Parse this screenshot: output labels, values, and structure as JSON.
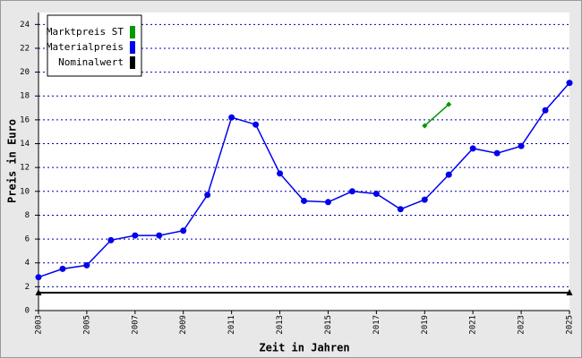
{
  "chart_data": {
    "type": "line",
    "x_label": "Zeit in Jahren",
    "y_label": "Preis in Euro",
    "xlim": [
      2003,
      2025
    ],
    "xticks": [
      2003,
      2005,
      2007,
      2009,
      2011,
      2013,
      2015,
      2017,
      2019,
      2021,
      2023,
      2025
    ],
    "ylim": [
      0,
      25
    ],
    "yticks": [
      0,
      2,
      4,
      6,
      8,
      10,
      12,
      14,
      16,
      18,
      20,
      22,
      24
    ],
    "grid": true,
    "legend": "top-left",
    "series": [
      {
        "name": "Marktpreis ST",
        "color": "#009900",
        "marker": "diamond",
        "x": [
          2019,
          2020
        ],
        "values": [
          15.5,
          17.3
        ]
      },
      {
        "name": "Materialpreis",
        "color": "#0000ee",
        "marker": "circle",
        "x": [
          2003,
          2004,
          2005,
          2006,
          2007,
          2008,
          2009,
          2010,
          2011,
          2012,
          2013,
          2014,
          2015,
          2016,
          2017,
          2018,
          2019,
          2020,
          2021,
          2022,
          2023,
          2024,
          2025
        ],
        "values": [
          2.8,
          3.5,
          3.8,
          5.9,
          6.3,
          6.3,
          6.7,
          9.7,
          16.2,
          15.6,
          11.5,
          9.2,
          9.1,
          10.0,
          9.8,
          8.5,
          9.3,
          11.4,
          13.6,
          13.2,
          13.8,
          16.8,
          19.1
        ]
      },
      {
        "name": "Nominalwert",
        "color": "#000000",
        "marker": "triangle",
        "x": [
          2003,
          2025
        ],
        "values": [
          1.5,
          1.5
        ]
      }
    ]
  }
}
